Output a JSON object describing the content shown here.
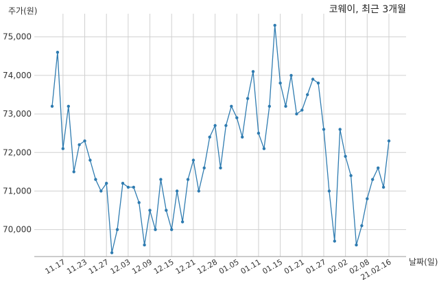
{
  "chart_data": {
    "type": "line",
    "title": "코웨이, 최근 3개월",
    "ylabel": "주가(원)",
    "xlabel": "날짜(일)",
    "ylim": [
      69300,
      75600
    ],
    "y_ticks": [
      "70,000",
      "71,000",
      "72,000",
      "73,000",
      "74,000",
      "75,000"
    ],
    "y_tick_values": [
      70000,
      71000,
      72000,
      73000,
      74000,
      75000
    ],
    "x_tick_labels": [
      "11.17",
      "11.23",
      "11.27",
      "12.03",
      "12.09",
      "12.15",
      "12.21",
      "12.28",
      "01.05",
      "01.11",
      "01.15",
      "01.21",
      "01.27",
      "02.02",
      "02.08",
      "21.02.16"
    ],
    "x_tick_indices": [
      2,
      6,
      10,
      14,
      18,
      22,
      26,
      30,
      34,
      38,
      42,
      46,
      50,
      54,
      58,
      62
    ],
    "grid": true,
    "line_color": "#2e7bb0",
    "series": [
      {
        "values": [
          73200,
          74600,
          72100,
          73200,
          71500,
          72200,
          72300,
          71800,
          71300,
          71000,
          71200,
          69400,
          70000,
          71200,
          71100,
          71100,
          70700,
          69600,
          70500,
          70000,
          71300,
          70500,
          70000,
          71000,
          70200,
          71300,
          71800,
          71000,
          71600,
          72400,
          72700,
          71600,
          72700,
          73200,
          72900,
          72400,
          73400,
          74100,
          72500,
          72100,
          73200,
          75300,
          73800,
          73200,
          74000,
          73000,
          73100,
          73500,
          73900,
          73800,
          72600,
          71000,
          69700,
          72600,
          71900,
          71400,
          69600,
          70100,
          70800,
          71300,
          71600,
          71100,
          72300
        ]
      }
    ]
  }
}
